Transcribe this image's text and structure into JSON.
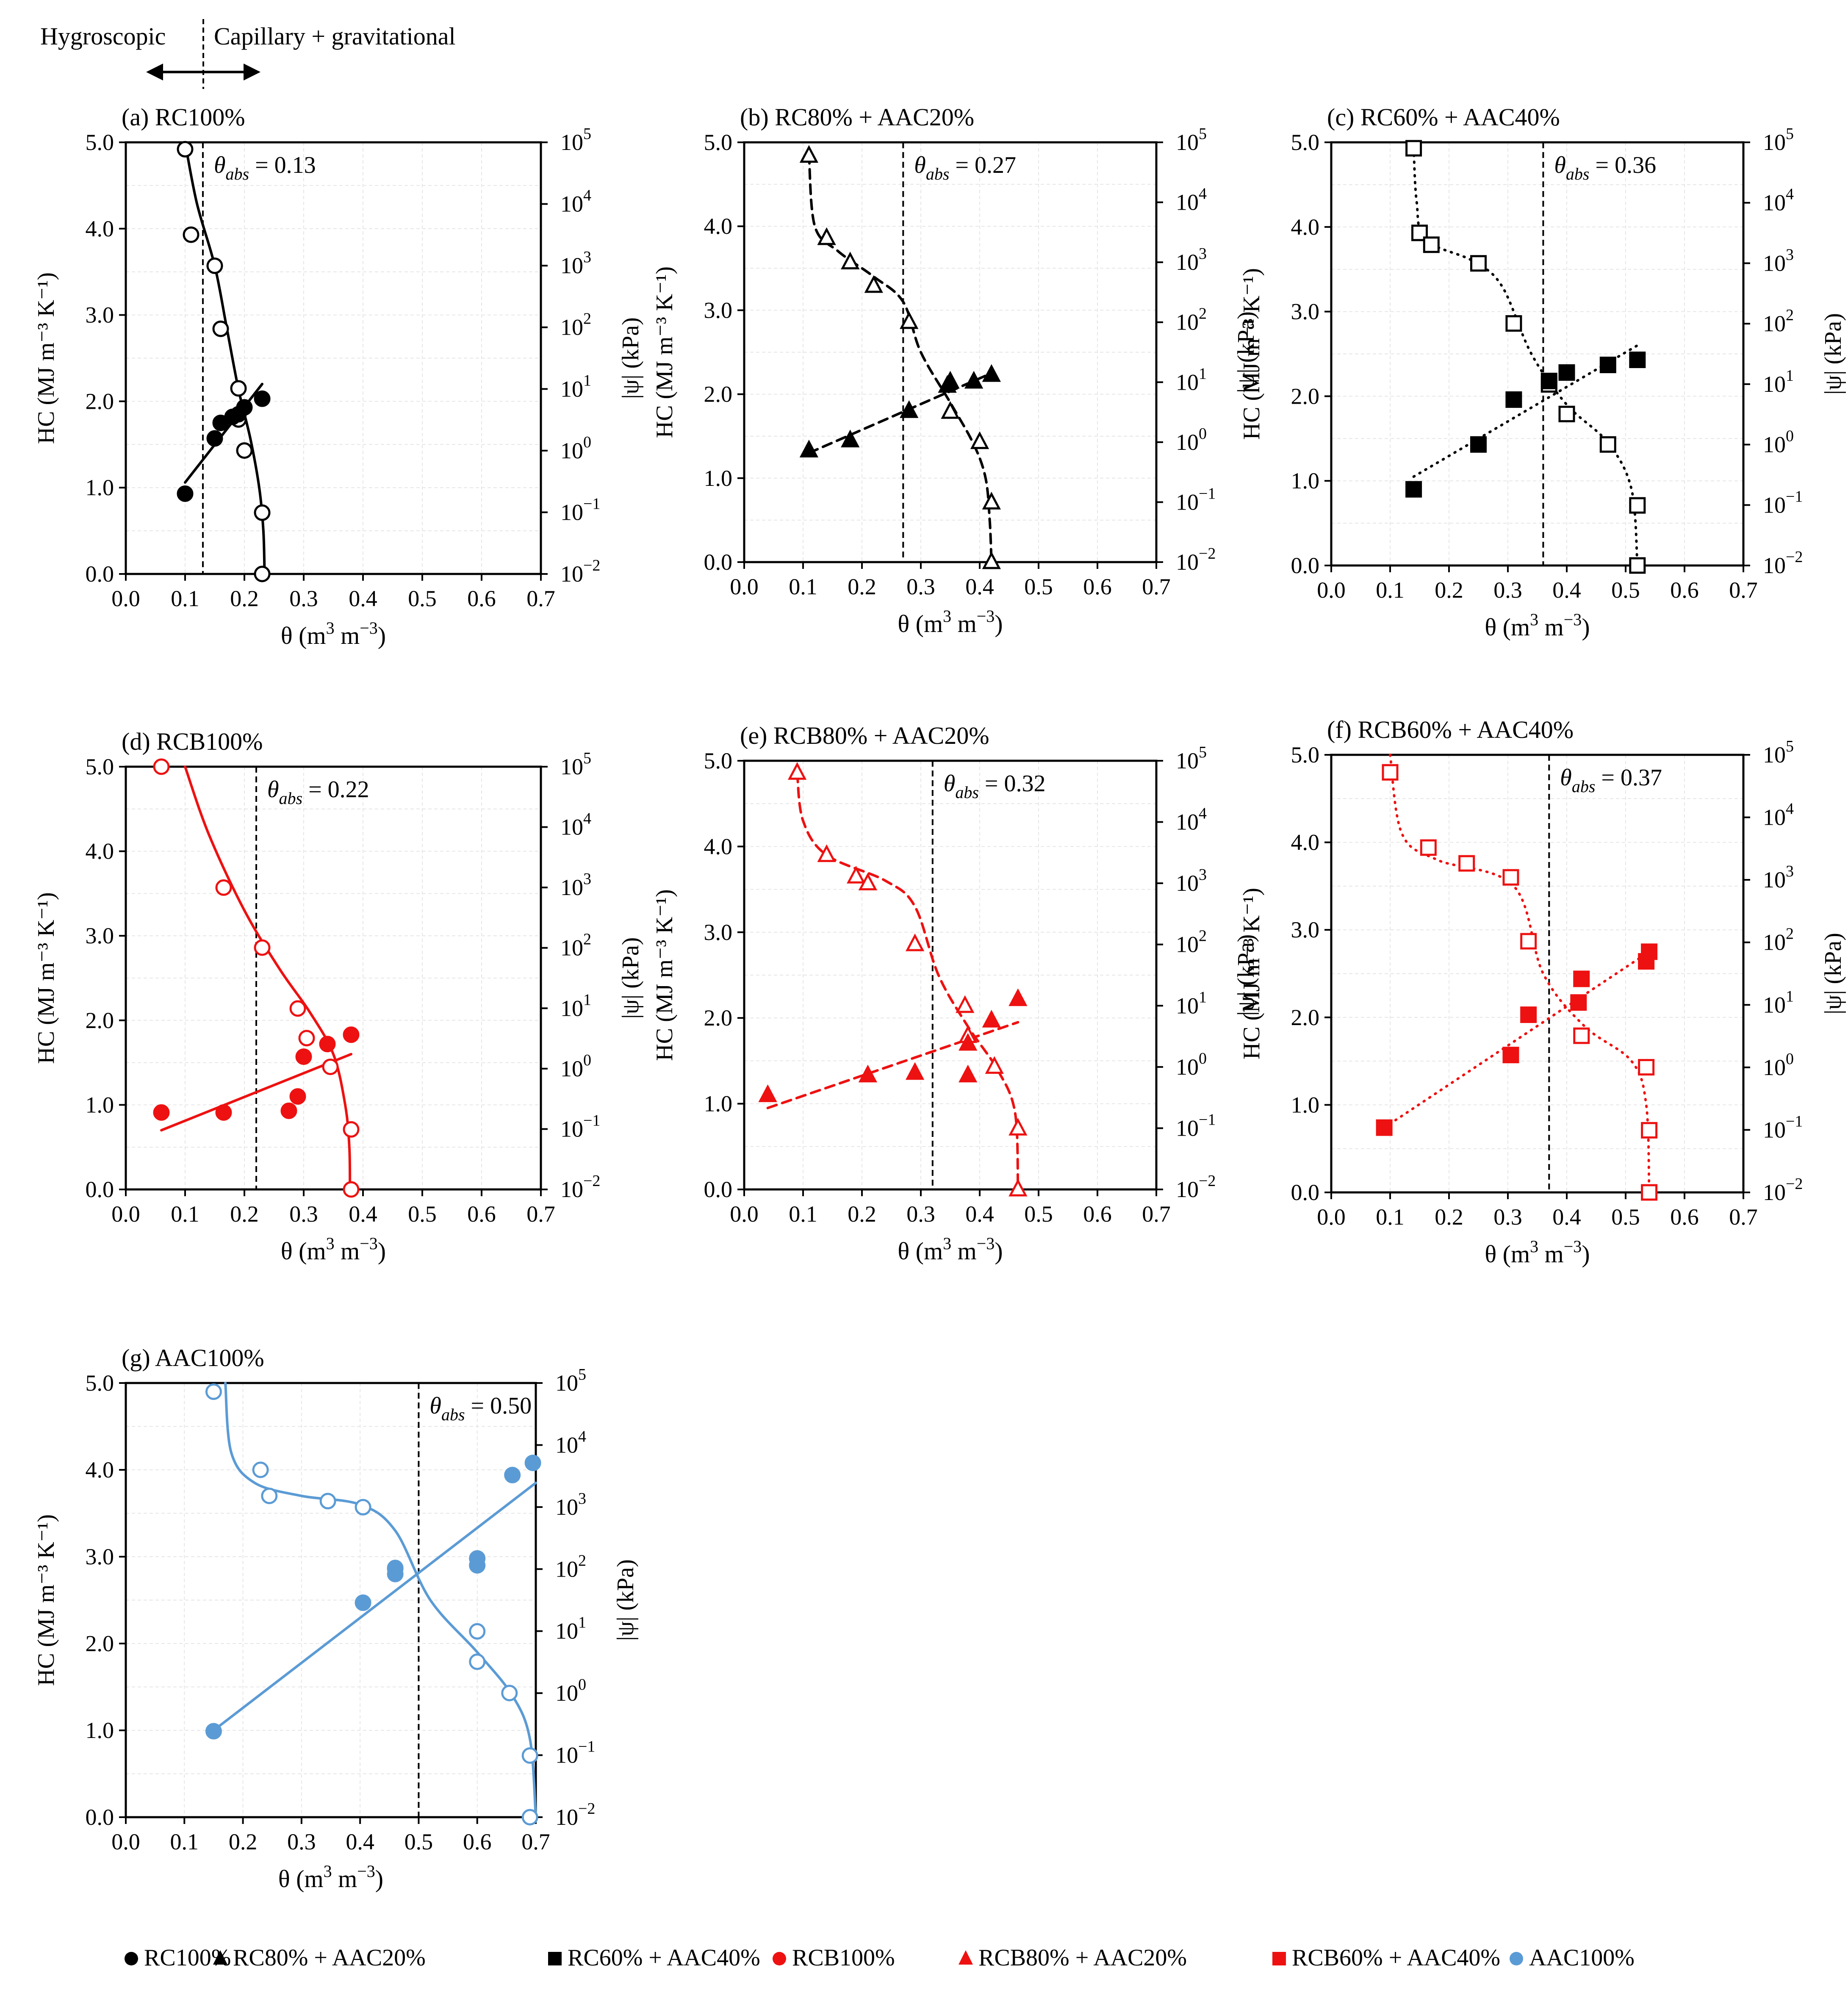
{
  "header": {
    "left_label": "Hygroscopic",
    "right_label": "Capillary + gravitational"
  },
  "axes": {
    "x_label_main": "θ (m",
    "x_label_unit": "3",
    "x_label_tail": " m",
    "x_label_exp": "−3",
    "x_label_close": ")",
    "y_left_label": "HC (MJ m⁻³ K⁻¹)",
    "y_right_label": "|ψ| (kPa)",
    "theta_abs_prefix": "θ",
    "theta_abs_sub": "abs",
    "x_ticks": [
      "0.0",
      "0.1",
      "0.2",
      "0.3",
      "0.4",
      "0.5",
      "0.6",
      "0.7"
    ],
    "y_left_ticks": [
      "0.0",
      "1.0",
      "2.0",
      "3.0",
      "4.0",
      "5.0"
    ],
    "y_right_ticks": [
      "-2",
      "-1",
      "0",
      "1",
      "2",
      "3",
      "4",
      "5"
    ]
  },
  "colors": {
    "black": "#000000",
    "red": "#ee1111",
    "blue": "#5b9bd5"
  },
  "chart_data": [
    {
      "panel": "(a)",
      "title": "(a) RC100%",
      "color": "black",
      "marker": "circle",
      "line": "solid",
      "theta_abs": "0.13",
      "theta_abs_value": 0.13,
      "xlim": [
        0,
        0.7
      ],
      "ylim": [
        0,
        5
      ],
      "y2lim_log10": [
        -2,
        5
      ],
      "hc_points": [
        [
          0.1,
          0.93
        ],
        [
          0.15,
          1.57
        ],
        [
          0.16,
          1.75
        ],
        [
          0.18,
          1.82
        ],
        [
          0.19,
          1.85
        ],
        [
          0.2,
          1.93
        ],
        [
          0.23,
          2.03
        ]
      ],
      "hc_fit": [
        [
          0.1,
          1.06
        ],
        [
          0.23,
          2.2
        ]
      ],
      "swrc_points": [
        [
          0.1,
          4.92
        ],
        [
          0.11,
          3.93
        ],
        [
          0.15,
          3.57
        ],
        [
          0.16,
          2.84
        ],
        [
          0.19,
          2.15
        ],
        [
          0.19,
          1.79
        ],
        [
          0.2,
          1.43
        ],
        [
          0.23,
          0.71
        ],
        [
          0.23,
          0.0
        ]
      ],
      "swrc_curve": [
        [
          0.1,
          5.0
        ],
        [
          0.12,
          4.29
        ],
        [
          0.15,
          3.57
        ],
        [
          0.17,
          2.86
        ],
        [
          0.19,
          2.14
        ],
        [
          0.21,
          1.57
        ],
        [
          0.225,
          1.0
        ],
        [
          0.232,
          0.5
        ],
        [
          0.234,
          0.0
        ]
      ]
    },
    {
      "panel": "(b)",
      "title": "(b) RC80% + AAC20%",
      "color": "black",
      "marker": "triangle",
      "line": "dashed",
      "theta_abs": "0.27",
      "theta_abs_value": 0.27,
      "xlim": [
        0,
        0.7
      ],
      "ylim": [
        0,
        5
      ],
      "y2lim_log10": [
        -2,
        5
      ],
      "hc_points": [
        [
          0.11,
          1.33
        ],
        [
          0.18,
          1.45
        ],
        [
          0.28,
          1.8
        ],
        [
          0.345,
          2.1
        ],
        [
          0.35,
          2.15
        ],
        [
          0.39,
          2.15
        ],
        [
          0.42,
          2.23
        ]
      ],
      "hc_fit": [
        [
          0.11,
          1.3
        ],
        [
          0.42,
          2.25
        ]
      ],
      "swrc_points": [
        [
          0.11,
          4.84
        ],
        [
          0.14,
          3.86
        ],
        [
          0.18,
          3.57
        ],
        [
          0.22,
          3.29
        ],
        [
          0.28,
          2.86
        ],
        [
          0.35,
          1.79
        ],
        [
          0.4,
          1.43
        ],
        [
          0.42,
          0.71
        ],
        [
          0.42,
          0.0
        ]
      ],
      "swrc_curve": [
        [
          0.11,
          4.86
        ],
        [
          0.12,
          4.0
        ],
        [
          0.16,
          3.7
        ],
        [
          0.22,
          3.4
        ],
        [
          0.27,
          3.1
        ],
        [
          0.3,
          2.5
        ],
        [
          0.35,
          1.9
        ],
        [
          0.39,
          1.4
        ],
        [
          0.41,
          1.0
        ],
        [
          0.417,
          0.5
        ],
        [
          0.42,
          0.0
        ]
      ]
    },
    {
      "panel": "(c)",
      "title": "(c) RC60% + AAC40%",
      "color": "black",
      "marker": "square",
      "line": "dotted",
      "theta_abs": "0.36",
      "theta_abs_value": 0.36,
      "xlim": [
        0,
        0.7
      ],
      "ylim": [
        0,
        5
      ],
      "y2lim_log10": [
        -2,
        5
      ],
      "hc_points": [
        [
          0.14,
          0.9
        ],
        [
          0.25,
          1.43
        ],
        [
          0.31,
          1.96
        ],
        [
          0.37,
          2.18
        ],
        [
          0.4,
          2.28
        ],
        [
          0.47,
          2.37
        ],
        [
          0.52,
          2.43
        ]
      ],
      "hc_fit": [
        [
          0.14,
          1.05
        ],
        [
          0.52,
          2.6
        ]
      ],
      "swrc_points": [
        [
          0.14,
          4.93
        ],
        [
          0.15,
          3.93
        ],
        [
          0.17,
          3.79
        ],
        [
          0.25,
          3.57
        ],
        [
          0.31,
          2.86
        ],
        [
          0.37,
          2.14
        ],
        [
          0.4,
          1.79
        ],
        [
          0.47,
          1.43
        ],
        [
          0.52,
          0.71
        ],
        [
          0.52,
          0.0
        ]
      ],
      "swrc_curve": [
        [
          0.14,
          4.93
        ],
        [
          0.145,
          4.3
        ],
        [
          0.16,
          3.85
        ],
        [
          0.24,
          3.6
        ],
        [
          0.29,
          3.3
        ],
        [
          0.34,
          2.5
        ],
        [
          0.4,
          1.9
        ],
        [
          0.47,
          1.45
        ],
        [
          0.51,
          0.9
        ],
        [
          0.52,
          0.0
        ]
      ]
    },
    {
      "panel": "(d)",
      "title": "(d) RCB100%",
      "color": "red",
      "marker": "circle",
      "line": "solid",
      "theta_abs": "0.22",
      "theta_abs_value": 0.22,
      "xlim": [
        0,
        0.7
      ],
      "ylim": [
        0,
        5
      ],
      "y2lim_log10": [
        -2,
        5
      ],
      "hc_points": [
        [
          0.06,
          0.91
        ],
        [
          0.165,
          0.91
        ],
        [
          0.275,
          0.93
        ],
        [
          0.29,
          1.1
        ],
        [
          0.3,
          1.57
        ],
        [
          0.34,
          1.72
        ],
        [
          0.38,
          1.83
        ]
      ],
      "hc_fit": [
        [
          0.06,
          0.7
        ],
        [
          0.38,
          1.6
        ]
      ],
      "swrc_points": [
        [
          0.06,
          5.0
        ],
        [
          0.165,
          3.57
        ],
        [
          0.23,
          2.86
        ],
        [
          0.29,
          2.14
        ],
        [
          0.305,
          1.79
        ],
        [
          0.345,
          1.45
        ],
        [
          0.38,
          0.71
        ],
        [
          0.38,
          0.0
        ]
      ],
      "swrc_curve": [
        [
          0.1,
          5.0
        ],
        [
          0.14,
          4.2
        ],
        [
          0.2,
          3.3
        ],
        [
          0.26,
          2.6
        ],
        [
          0.31,
          2.1
        ],
        [
          0.35,
          1.6
        ],
        [
          0.37,
          1.0
        ],
        [
          0.377,
          0.5
        ],
        [
          0.378,
          0.0
        ]
      ]
    },
    {
      "panel": "(e)",
      "title": "(e) RCB80% + AAC20%",
      "color": "red",
      "marker": "triangle",
      "line": "dashed",
      "theta_abs": "0.32",
      "theta_abs_value": 0.32,
      "xlim": [
        0,
        0.7
      ],
      "ylim": [
        0,
        5
      ],
      "y2lim_log10": [
        -2,
        5
      ],
      "hc_points": [
        [
          0.04,
          1.1
        ],
        [
          0.21,
          1.33
        ],
        [
          0.29,
          1.36
        ],
        [
          0.38,
          1.33
        ],
        [
          0.38,
          1.7
        ],
        [
          0.42,
          1.97
        ],
        [
          0.465,
          2.22
        ]
      ],
      "hc_fit": [
        [
          0.04,
          0.95
        ],
        [
          0.465,
          1.95
        ]
      ],
      "swrc_points": [
        [
          0.09,
          4.86
        ],
        [
          0.14,
          3.9
        ],
        [
          0.19,
          3.65
        ],
        [
          0.21,
          3.57
        ],
        [
          0.29,
          2.86
        ],
        [
          0.375,
          2.14
        ],
        [
          0.38,
          1.79
        ],
        [
          0.425,
          1.43
        ],
        [
          0.465,
          0.71
        ],
        [
          0.465,
          0.0
        ]
      ],
      "swrc_curve": [
        [
          0.09,
          4.86
        ],
        [
          0.1,
          4.3
        ],
        [
          0.14,
          3.9
        ],
        [
          0.24,
          3.6
        ],
        [
          0.29,
          3.3
        ],
        [
          0.33,
          2.5
        ],
        [
          0.38,
          1.9
        ],
        [
          0.43,
          1.4
        ],
        [
          0.46,
          0.9
        ],
        [
          0.465,
          0.0
        ]
      ]
    },
    {
      "panel": "(f)",
      "title": "(f) RCB60% + AAC40%",
      "color": "red",
      "marker": "square",
      "line": "dotted",
      "theta_abs": "0.37",
      "theta_abs_value": 0.37,
      "xlim": [
        0,
        0.7
      ],
      "ylim": [
        0,
        5
      ],
      "y2lim_log10": [
        -2,
        5
      ],
      "hc_points": [
        [
          0.09,
          0.74
        ],
        [
          0.305,
          1.57
        ],
        [
          0.335,
          2.03
        ],
        [
          0.42,
          2.17
        ],
        [
          0.425,
          2.44
        ],
        [
          0.535,
          2.64
        ],
        [
          0.54,
          2.75
        ]
      ],
      "hc_fit": [
        [
          0.09,
          0.74
        ],
        [
          0.54,
          2.75
        ]
      ],
      "swrc_points": [
        [
          0.1,
          4.8
        ],
        [
          0.165,
          3.94
        ],
        [
          0.23,
          3.76
        ],
        [
          0.305,
          3.6
        ],
        [
          0.335,
          2.87
        ],
        [
          0.425,
          1.79
        ],
        [
          0.535,
          1.43
        ],
        [
          0.54,
          0.71
        ],
        [
          0.54,
          0.0
        ]
      ],
      "swrc_curve": [
        [
          0.1,
          5.0
        ],
        [
          0.12,
          4.1
        ],
        [
          0.18,
          3.8
        ],
        [
          0.31,
          3.5
        ],
        [
          0.36,
          2.5
        ],
        [
          0.43,
          1.9
        ],
        [
          0.51,
          1.5
        ],
        [
          0.535,
          1.0
        ],
        [
          0.54,
          0.0
        ]
      ]
    },
    {
      "panel": "(g)",
      "title": "(g) AAC100%",
      "color": "blue",
      "marker": "circle",
      "line": "solid",
      "theta_abs": "0.50",
      "theta_abs_value": 0.5,
      "xlim": [
        0,
        0.7
      ],
      "ylim": [
        0,
        5
      ],
      "y2lim_log10": [
        -2,
        5
      ],
      "hc_points": [
        [
          0.15,
          0.99
        ],
        [
          0.405,
          2.47
        ],
        [
          0.46,
          2.8
        ],
        [
          0.46,
          2.87
        ],
        [
          0.6,
          2.9
        ],
        [
          0.6,
          2.98
        ],
        [
          0.66,
          3.94
        ],
        [
          0.695,
          4.08
        ]
      ],
      "hc_fit": [
        [
          0.15,
          1.0
        ],
        [
          0.7,
          3.85
        ]
      ],
      "swrc_points": [
        [
          0.15,
          4.9
        ],
        [
          0.23,
          4.0
        ],
        [
          0.245,
          3.7
        ],
        [
          0.345,
          3.64
        ],
        [
          0.405,
          3.57
        ],
        [
          0.46,
          2.86
        ],
        [
          0.6,
          2.14
        ],
        [
          0.6,
          1.79
        ],
        [
          0.655,
          1.43
        ],
        [
          0.69,
          0.71
        ],
        [
          0.69,
          0.0
        ]
      ],
      "swrc_curve": [
        [
          0.17,
          5.0
        ],
        [
          0.18,
          4.2
        ],
        [
          0.22,
          3.85
        ],
        [
          0.3,
          3.7
        ],
        [
          0.4,
          3.6
        ],
        [
          0.46,
          3.3
        ],
        [
          0.52,
          2.5
        ],
        [
          0.6,
          1.9
        ],
        [
          0.66,
          1.4
        ],
        [
          0.69,
          0.9
        ],
        [
          0.7,
          0.0
        ]
      ]
    }
  ],
  "legend": [
    {
      "label": "RC100%",
      "marker": "circle",
      "color": "black"
    },
    {
      "label": "RC80% + AAC20%",
      "marker": "triangle",
      "color": "black"
    },
    {
      "label": "RC60% + AAC40%",
      "marker": "square",
      "color": "black"
    },
    {
      "label": "RCB100%",
      "marker": "circle",
      "color": "red"
    },
    {
      "label": "RCB80% + AAC20%",
      "marker": "triangle",
      "color": "red"
    },
    {
      "label": "RCB60% + AAC40%",
      "marker": "square",
      "color": "red"
    },
    {
      "label": "AAC100%",
      "marker": "circle",
      "color": "blue"
    }
  ]
}
